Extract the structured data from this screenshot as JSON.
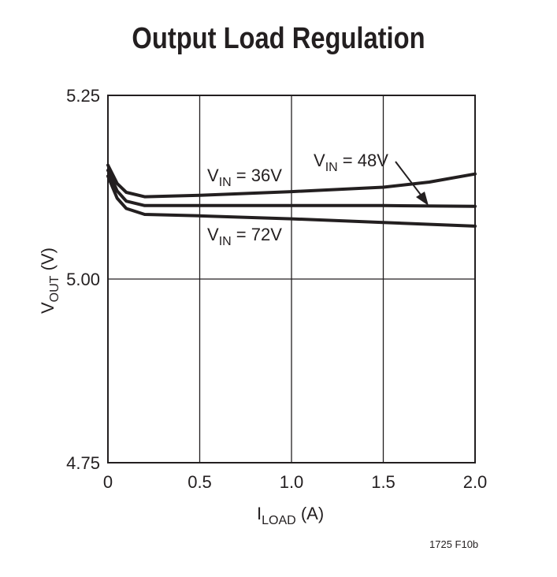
{
  "title": "Output Load Regulation",
  "figure_id": "1725 F10b",
  "chart_data": {
    "type": "line",
    "xlabel": {
      "main": "I",
      "sub": "LOAD",
      "suffix": " (A)"
    },
    "ylabel": {
      "main": "V",
      "sub": "OUT",
      "suffix": " (V)"
    },
    "xlim": [
      0,
      2.0
    ],
    "ylim": [
      4.75,
      5.25
    ],
    "x_ticks": [
      "0",
      "0.5",
      "1.0",
      "1.5",
      "2.0"
    ],
    "y_ticks": [
      "4.75",
      "5.00",
      "5.25"
    ],
    "x_tick_values": [
      0,
      0.5,
      1.0,
      1.5,
      2.0
    ],
    "y_tick_values": [
      4.75,
      5.0,
      5.25
    ],
    "grid": true,
    "line_color": "#231f20",
    "series": [
      {
        "name": "VIN = 36V",
        "label_main": "V",
        "label_sub": "IN",
        "label_suffix": " = 36V",
        "x": [
          0,
          0.05,
          0.1,
          0.2,
          0.5,
          1.0,
          1.5,
          1.75,
          2.0
        ],
        "y": [
          5.155,
          5.13,
          5.118,
          5.112,
          5.114,
          5.119,
          5.125,
          5.132,
          5.143
        ]
      },
      {
        "name": "VIN = 48V",
        "label_main": "V",
        "label_sub": "IN",
        "label_suffix": " = 48V",
        "x": [
          0,
          0.05,
          0.1,
          0.2,
          0.5,
          1.0,
          1.5,
          2.0
        ],
        "y": [
          5.148,
          5.12,
          5.106,
          5.1,
          5.1,
          5.1,
          5.1,
          5.099
        ]
      },
      {
        "name": "VIN = 72V",
        "label_main": "V",
        "label_sub": "IN",
        "label_suffix": " = 72V",
        "x": [
          0,
          0.05,
          0.1,
          0.2,
          0.5,
          1.0,
          1.5,
          2.0
        ],
        "y": [
          5.14,
          5.11,
          5.096,
          5.088,
          5.086,
          5.082,
          5.077,
          5.072
        ]
      }
    ]
  }
}
